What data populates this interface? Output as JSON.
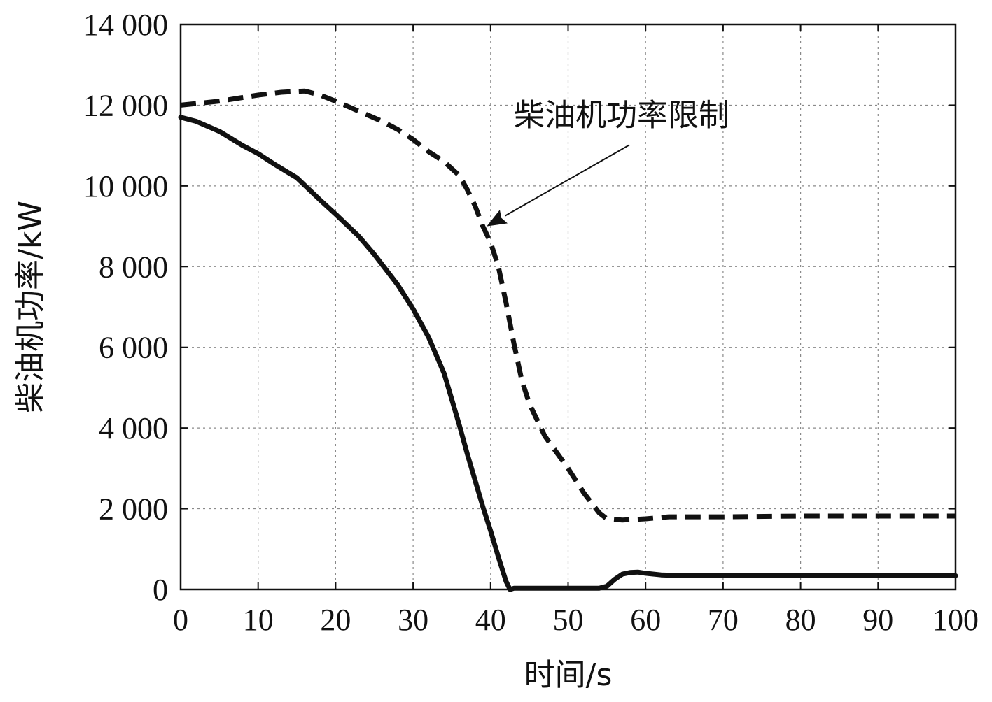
{
  "chart_data": {
    "type": "line",
    "xlabel": "时间/s",
    "ylabel": "柴油机功率/kW",
    "xlim": [
      0,
      100
    ],
    "ylim": [
      0,
      14000
    ],
    "x_ticks": [
      0,
      10,
      20,
      30,
      40,
      50,
      60,
      70,
      80,
      90,
      100
    ],
    "x_tick_labels": [
      "0",
      "10",
      "20",
      "30",
      "40",
      "50",
      "60",
      "70",
      "80",
      "90",
      "100"
    ],
    "y_ticks": [
      0,
      2000,
      4000,
      6000,
      8000,
      10000,
      12000,
      14000
    ],
    "y_tick_labels": [
      "0",
      "2 000",
      "4 000",
      "6 000",
      "8 000",
      "10 000",
      "12 000",
      "14 000"
    ],
    "grid": true,
    "series": [
      {
        "style": "solid",
        "color": "#111111",
        "x": [
          0,
          2,
          5,
          8,
          10,
          12,
          15,
          18,
          20,
          23,
          25,
          28,
          30,
          32,
          34,
          35,
          36,
          37,
          38,
          39,
          40,
          41,
          42,
          42.5,
          43,
          45,
          50,
          54,
          55,
          56,
          57,
          58,
          59,
          60,
          62,
          65,
          70,
          80,
          90,
          100
        ],
        "y": [
          11700,
          11600,
          11350,
          11000,
          10800,
          10550,
          10200,
          9650,
          9300,
          8750,
          8300,
          7550,
          6950,
          6250,
          5350,
          4700,
          4050,
          3350,
          2700,
          2050,
          1450,
          800,
          200,
          0,
          30,
          30,
          30,
          30,
          80,
          250,
          380,
          420,
          430,
          400,
          360,
          340,
          340,
          340,
          340,
          340
        ]
      },
      {
        "name": "柴油机功率限制",
        "style": "dashed",
        "color": "#111111",
        "x": [
          0,
          5,
          10,
          13,
          16,
          18,
          20,
          23,
          26,
          28,
          30,
          32,
          34,
          36,
          37,
          38,
          39,
          40,
          41,
          42,
          43,
          44,
          45,
          47,
          50,
          52,
          54,
          55,
          57,
          60,
          63,
          70,
          80,
          90,
          100
        ],
        "y": [
          12000,
          12100,
          12250,
          12320,
          12350,
          12250,
          12100,
          11850,
          11600,
          11400,
          11150,
          10850,
          10600,
          10250,
          9900,
          9500,
          9000,
          8600,
          8000,
          7100,
          6100,
          5200,
          4600,
          3800,
          3000,
          2400,
          1900,
          1750,
          1720,
          1750,
          1800,
          1800,
          1820,
          1820,
          1820
        ]
      }
    ],
    "annotations": [
      {
        "text": "柴油机功率限制",
        "target": [
          39.5,
          9000
        ],
        "text_anchor": [
          43,
          11500
        ]
      }
    ]
  }
}
